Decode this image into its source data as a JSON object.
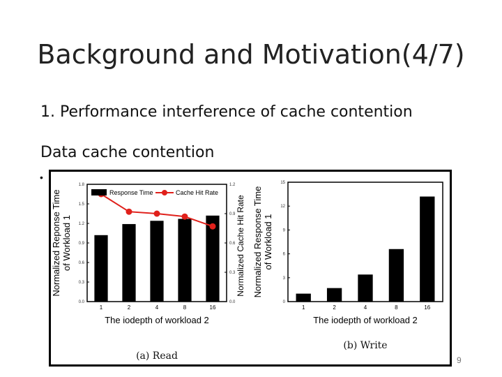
{
  "slide": {
    "title": "Background and Motivation(4/7)",
    "point1": "1.  Performance interference of cache contention",
    "subheading": "Data cache contention",
    "bullet": "•",
    "page_number": "9"
  },
  "colors": {
    "bar": "#000000",
    "line": "#e0201b"
  },
  "chart_data": [
    {
      "type": "bar",
      "caption": "(a)  Read",
      "categories": [
        "1",
        "2",
        "4",
        "8",
        "16"
      ],
      "series": [
        {
          "name": "Response Time",
          "values": [
            1.02,
            1.19,
            1.24,
            1.27,
            1.32
          ],
          "axis": "left"
        },
        {
          "name": "Cache Hit Rate",
          "values": [
            1.1,
            0.92,
            0.9,
            0.87,
            0.77
          ],
          "axis": "right",
          "kind": "line"
        }
      ],
      "xlabel": "The iodepth of workload 2",
      "ylabel_lines": [
        "Normalized Reponse Time",
        "of Workload 1"
      ],
      "y2label": "Normalized Cache Hit Rate",
      "ylim": [
        0,
        1.8
      ],
      "y2lim": [
        0,
        1.2
      ],
      "yticks": [
        "0.0",
        "0.3",
        "0.6",
        "0.9",
        "1.2",
        "1.5",
        "1.8"
      ],
      "y2ticks": [
        "0.0",
        "0.3",
        "0.6",
        "0.9",
        "1.2"
      ],
      "legend": "top"
    },
    {
      "type": "bar",
      "caption": "(b)  Write",
      "categories": [
        "1",
        "2",
        "4",
        "8",
        "16"
      ],
      "series": [
        {
          "name": "Response Time",
          "values": [
            1.0,
            1.7,
            3.4,
            6.6,
            13.2
          ]
        }
      ],
      "xlabel": "The iodepth of workload 2",
      "ylabel_lines": [
        "Normalized Response Time",
        "of Workload 1"
      ],
      "ylim": [
        0,
        15
      ],
      "yticks": [
        "0",
        "3",
        "6",
        "9",
        "12",
        "15"
      ]
    }
  ]
}
